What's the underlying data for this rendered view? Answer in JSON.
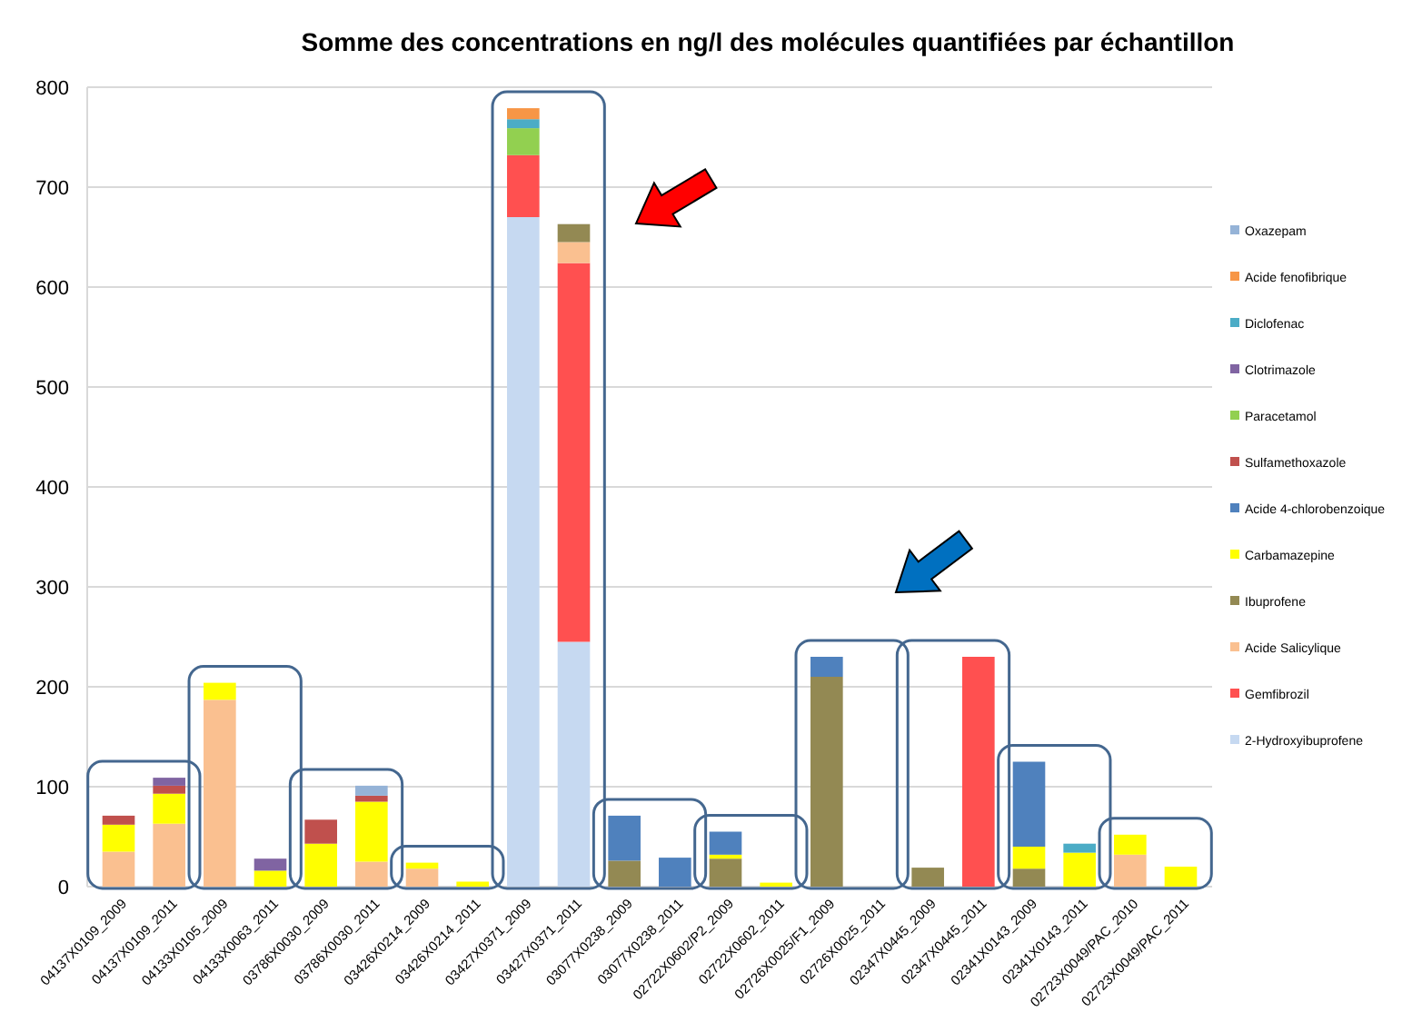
{
  "chart_data": {
    "type": "bar",
    "stacked": true,
    "title": "Somme des concentrations en ng/l des molécules quantifiées par échantillon",
    "categories": [
      "04137X0109_2009",
      "04137X0109_2011",
      "04133X0105_2009",
      "04133X0063_2011",
      "03786X0030_2009",
      "03786X0030_2011",
      "03426X0214_2009",
      "03426X0214_2011",
      "03427X0371_2009",
      "03427X0371_2011",
      "03077X0238_2009",
      "03077X0238_2011",
      "02722X0602/P2_2009",
      "02722X0602_2011",
      "02726X0025/F1_2009",
      "02726X0025_2011",
      "02347X0445_2009",
      "02347X0445_2011",
      "02341X0143_2009",
      "02341X0143_2011",
      "02723X0049/PAC_2010",
      "02723X0049/PAC_2011"
    ],
    "series": [
      {
        "name": "2-Hydroxyibuprofene",
        "color": "#c6d9f1",
        "values": [
          null,
          null,
          null,
          null,
          null,
          null,
          null,
          null,
          670,
          245,
          null,
          null,
          null,
          null,
          null,
          null,
          null,
          null,
          null,
          null,
          null,
          null
        ]
      },
      {
        "name": "Gemfibrozil",
        "color": "#ff5050",
        "values": [
          null,
          null,
          null,
          null,
          null,
          null,
          null,
          null,
          62,
          379,
          null,
          null,
          null,
          null,
          null,
          null,
          null,
          230,
          null,
          null,
          null,
          null
        ]
      },
      {
        "name": "Acide Salicylique",
        "color": "#fac090",
        "values": [
          35,
          63,
          187,
          null,
          null,
          25,
          18,
          null,
          null,
          21,
          null,
          null,
          null,
          null,
          null,
          null,
          null,
          null,
          null,
          null,
          32,
          null
        ]
      },
      {
        "name": "Ibuprofene",
        "color": "#938953",
        "values": [
          null,
          null,
          null,
          null,
          null,
          null,
          null,
          null,
          null,
          18,
          26,
          null,
          28,
          null,
          210,
          null,
          19,
          null,
          18,
          null,
          null,
          null
        ]
      },
      {
        "name": "Carbamazepine",
        "color": "#ffff00",
        "values": [
          27,
          30,
          17,
          16,
          43,
          60,
          6,
          5,
          null,
          null,
          null,
          null,
          4,
          4,
          null,
          null,
          null,
          null,
          22,
          34,
          20,
          20
        ]
      },
      {
        "name": "Acide 4-chlorobenzoique",
        "color": "#4f81bd",
        "values": [
          null,
          null,
          null,
          null,
          null,
          null,
          null,
          null,
          null,
          null,
          45,
          29,
          23,
          null,
          20,
          null,
          null,
          null,
          85,
          null,
          null,
          null
        ]
      },
      {
        "name": "Sulfamethoxazole",
        "color": "#c0504d",
        "values": [
          9,
          8,
          null,
          null,
          24,
          6,
          null,
          null,
          null,
          null,
          null,
          null,
          null,
          null,
          null,
          null,
          null,
          null,
          null,
          null,
          null,
          null
        ]
      },
      {
        "name": "Paracetamol",
        "color": "#92d050",
        "values": [
          null,
          null,
          null,
          null,
          null,
          null,
          null,
          null,
          27,
          null,
          null,
          null,
          null,
          null,
          null,
          null,
          null,
          null,
          null,
          null,
          null,
          null
        ]
      },
      {
        "name": "Clotrimazole",
        "color": "#8064a2",
        "values": [
          null,
          8,
          null,
          12,
          null,
          null,
          null,
          null,
          null,
          null,
          null,
          null,
          null,
          null,
          null,
          null,
          null,
          null,
          null,
          null,
          null,
          null
        ]
      },
      {
        "name": "Diclofenac",
        "color": "#4bacc6",
        "values": [
          null,
          null,
          null,
          null,
          null,
          null,
          null,
          null,
          9,
          null,
          null,
          null,
          null,
          null,
          null,
          null,
          null,
          null,
          null,
          9,
          null,
          null
        ]
      },
      {
        "name": "Acide fenofibrique",
        "color": "#f79646",
        "values": [
          null,
          null,
          null,
          null,
          null,
          null,
          null,
          null,
          11,
          null,
          null,
          null,
          null,
          null,
          null,
          null,
          null,
          null,
          null,
          null,
          null,
          null
        ]
      },
      {
        "name": "Oxazepam",
        "color": "#95b3d7",
        "values": [
          null,
          null,
          null,
          null,
          null,
          10,
          null,
          null,
          null,
          null,
          null,
          null,
          null,
          null,
          null,
          null,
          null,
          null,
          null,
          null,
          null,
          null
        ]
      }
    ],
    "ylim": [
      0,
      800
    ],
    "yticks": [
      0,
      100,
      200,
      300,
      400,
      500,
      600,
      700,
      800
    ],
    "grid": "y",
    "legend": "right"
  }
}
